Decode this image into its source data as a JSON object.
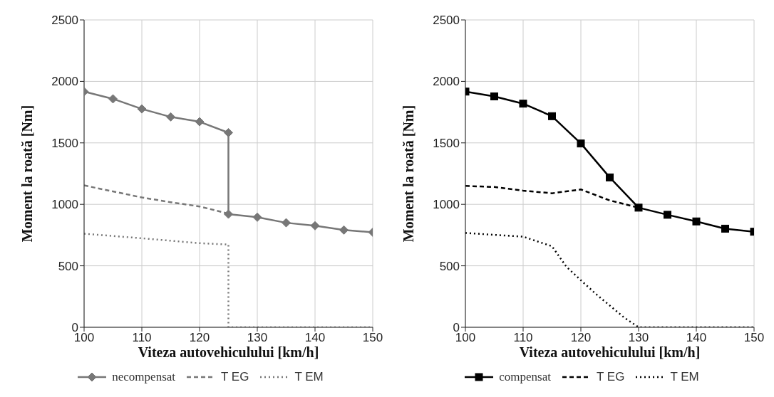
{
  "chart_data": [
    {
      "type": "line",
      "xlabel": "Viteza autovehiculului [km/h]",
      "ylabel": "Moment la roată [Nm]",
      "xlim": [
        100,
        150
      ],
      "xticks": [
        100,
        110,
        120,
        130,
        140,
        150
      ],
      "ylim": [
        0,
        2500
      ],
      "yticks": [
        0,
        500,
        1000,
        1500,
        2000,
        2500
      ],
      "grid": true,
      "legend": "bottom",
      "series": [
        {
          "name": "necompensat",
          "color": "#777777",
          "marker": "diamond",
          "line_style": "solid",
          "x": [
            100,
            105,
            110,
            115,
            120,
            125,
            125,
            130,
            135,
            140,
            145,
            150
          ],
          "values": [
            1917,
            1858,
            1776,
            1711,
            1672,
            1583,
            920,
            895,
            850,
            826,
            791,
            773
          ]
        },
        {
          "name": "T EG",
          "color": "#777777",
          "marker": "none",
          "line_style": "dashed",
          "x": [
            100,
            110,
            115,
            120,
            125
          ],
          "values": [
            1154,
            1056,
            1017,
            983,
            924
          ]
        },
        {
          "name": "T EM",
          "color": "#777777",
          "marker": "none",
          "line_style": "dotted",
          "x": [
            100,
            110,
            120,
            125,
            125,
            150
          ],
          "values": [
            761,
            724,
            684,
            673,
            0,
            0
          ]
        }
      ]
    },
    {
      "type": "line",
      "xlabel": "Viteza autovehiculului [km/h]",
      "ylabel": "Moment la roată [Nm]",
      "xlim": [
        100,
        150
      ],
      "xticks": [
        100,
        110,
        120,
        130,
        140,
        150
      ],
      "ylim": [
        0,
        2500
      ],
      "yticks": [
        0,
        500,
        1000,
        1500,
        2000,
        2500
      ],
      "grid": true,
      "legend": "bottom",
      "series": [
        {
          "name": "compensat",
          "color": "#000000",
          "marker": "square",
          "line_style": "solid",
          "x": [
            100,
            105,
            110,
            115,
            120,
            125,
            130,
            135,
            140,
            145,
            150
          ],
          "values": [
            1917,
            1878,
            1819,
            1717,
            1495,
            1219,
            973,
            915,
            861,
            802,
            777
          ]
        },
        {
          "name": "T EG",
          "color": "#000000",
          "marker": "none",
          "line_style": "dashed",
          "x": [
            100,
            105,
            110,
            115,
            120,
            125,
            130
          ],
          "values": [
            1150,
            1141,
            1111,
            1090,
            1121,
            1032,
            973
          ]
        },
        {
          "name": "T EM",
          "color": "#000000",
          "marker": "none",
          "line_style": "dotted",
          "x": [
            100,
            110,
            115,
            117.5,
            120,
            122.5,
            125,
            127.5,
            130,
            150
          ],
          "values": [
            767,
            737,
            659,
            492,
            383,
            275,
            177,
            79,
            0,
            0
          ]
        }
      ]
    }
  ]
}
